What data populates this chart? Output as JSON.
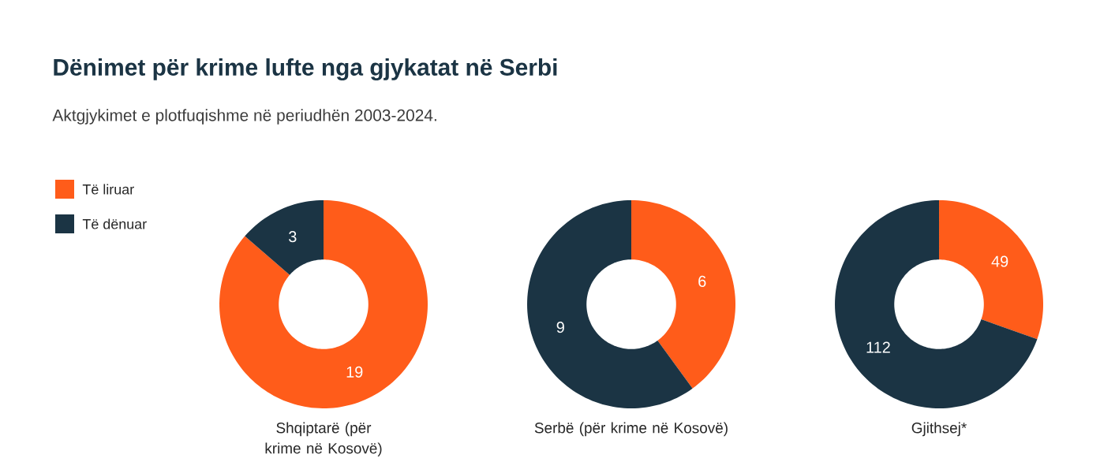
{
  "chart_data": [
    {
      "type": "donut",
      "title": "Dënimet për krime lufte nga gjykatat në Serbi",
      "subtitle": "Aktgjykimet e plotfuqishme në periudhën 2003-2024.",
      "categories": [
        "Të liruar",
        "Të dënuar"
      ],
      "values": [
        19,
        3
      ],
      "colors": [
        "#ff5c1a",
        "#1b3444"
      ],
      "data_labels": true,
      "legend": "left",
      "xlabel": "Shqiptarë (për krime në Kosovë)"
    },
    {
      "type": "donut",
      "values": [
        6,
        9
      ],
      "colors": [
        "#ff5c1a",
        "#1b3444"
      ],
      "data_labels": true,
      "xlabel": "Serbë (për krime në Kosovë)"
    },
    {
      "type": "donut",
      "values": [
        49,
        112
      ],
      "colors": [
        "#ff5c1a",
        "#1b3444"
      ],
      "data_labels": true,
      "xlabel": "Gjithsej*"
    }
  ]
}
